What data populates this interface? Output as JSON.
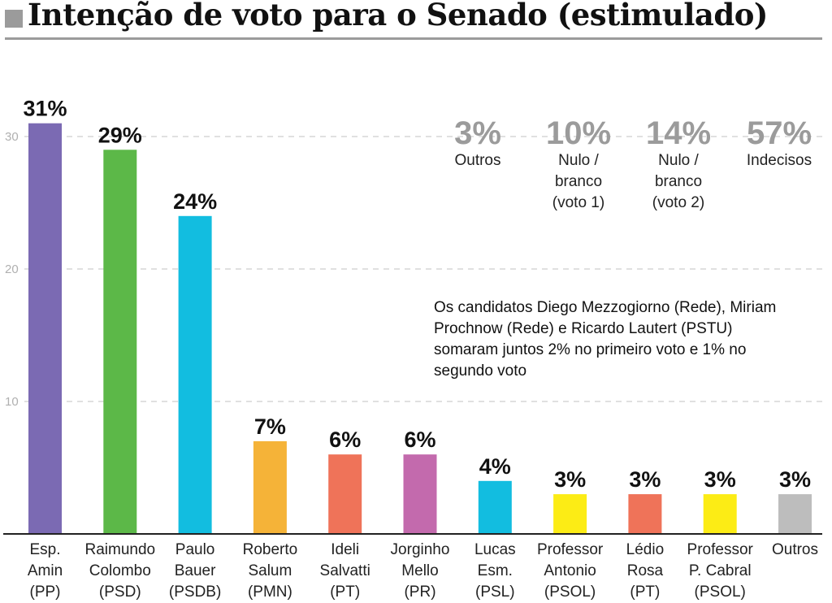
{
  "title": "Intenção de voto para o Senado (estimulado)",
  "summary": [
    {
      "pct": "3%",
      "label": "Outros"
    },
    {
      "pct": "10%",
      "label": "Nulo /\nbranco\n(voto 1)"
    },
    {
      "pct": "14%",
      "label": "Nulo /\nbranco\n(voto 2)"
    },
    {
      "pct": "57%",
      "label": "Indecisos"
    }
  ],
  "note": "Os candidatos Diego Mezzogiorno (Rede), Miriam Prochnow (Rede) e Ricardo Lautert (PSTU) somaram juntos 2% no primeiro voto e 1% no segundo voto",
  "colors": {
    "gridline": "#d6d6d6",
    "axis": "#222222",
    "tick_text": "#b0b0b0",
    "summary_pct": "#9b9b9b"
  },
  "chart_data": {
    "type": "bar",
    "title": "Intenção de voto para o Senado (estimulado)",
    "ylim": [
      0,
      32
    ],
    "yticks": [
      10,
      20,
      30
    ],
    "grid": true,
    "categories": [
      [
        "Esp.",
        "Amin",
        "(PP)"
      ],
      [
        "Raimundo",
        "Colombo",
        "(PSD)"
      ],
      [
        "Paulo",
        "Bauer",
        "(PSDB)"
      ],
      [
        "Roberto",
        "Salum",
        "(PMN)"
      ],
      [
        "Ideli",
        "Salvatti",
        "(PT)"
      ],
      [
        "Jorginho",
        "Mello",
        "(PR)"
      ],
      [
        "Lucas",
        "Esm.",
        "(PSL)"
      ],
      [
        "Professor",
        "Antonio",
        "(PSOL)"
      ],
      [
        "Lédio",
        "Rosa",
        "(PT)"
      ],
      [
        "Professor",
        "P. Cabral",
        "(PSOL)"
      ],
      [
        "Outros"
      ]
    ],
    "values": [
      31,
      29,
      24,
      7,
      6,
      6,
      4,
      3,
      3,
      3,
      3
    ],
    "value_labels": [
      "31%",
      "29%",
      "24%",
      "7%",
      "6%",
      "6%",
      "4%",
      "3%",
      "3%",
      "3%",
      "3%"
    ],
    "bar_colors": [
      "#7b6ab3",
      "#5cb848",
      "#12bde0",
      "#f5b338",
      "#ef7359",
      "#c36aad",
      "#12bde0",
      "#fcec15",
      "#ef7359",
      "#fcec15",
      "#bdbdbd"
    ]
  }
}
